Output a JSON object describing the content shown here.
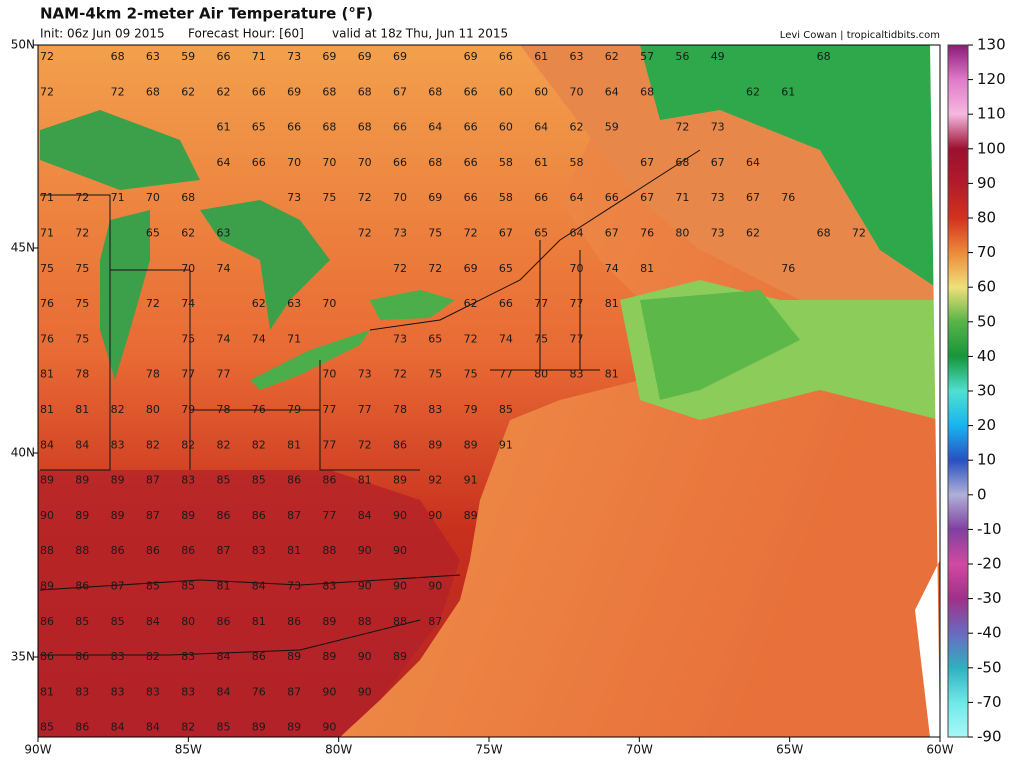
{
  "header": {
    "title": "NAM-4km 2-meter Air Temperature (°F)",
    "init": "Init: 06z Jun 09 2015",
    "forecast_hour": "Forecast Hour: [60]",
    "valid": "valid at 18z Thu, Jun 11 2015",
    "credit": "Levi Cowan | tropicaltidbits.com"
  },
  "map": {
    "lat_labels": [
      "50N",
      "45N",
      "40N",
      "35N"
    ],
    "lon_labels": [
      "90W",
      "85W",
      "80W",
      "75W",
      "70W",
      "65W",
      "60W"
    ],
    "temperature_rows": [
      [
        72,
        null,
        68,
        63,
        59,
        66,
        71,
        73,
        69,
        69,
        69,
        null,
        69,
        66,
        61,
        63,
        62,
        57,
        56,
        49,
        null,
        null,
        68
      ],
      [
        72,
        null,
        72,
        68,
        62,
        62,
        66,
        69,
        68,
        68,
        67,
        68,
        66,
        60,
        60,
        70,
        64,
        68,
        null,
        null,
        62,
        61
      ],
      [
        null,
        null,
        null,
        null,
        null,
        61,
        65,
        66,
        68,
        68,
        66,
        64,
        66,
        60,
        64,
        62,
        59,
        null,
        72,
        73
      ],
      [
        null,
        null,
        null,
        null,
        null,
        64,
        66,
        70,
        70,
        70,
        66,
        68,
        66,
        58,
        61,
        58,
        null,
        67,
        68,
        67,
        64
      ],
      [
        71,
        72,
        71,
        70,
        68,
        null,
        null,
        73,
        75,
        72,
        70,
        69,
        66,
        58,
        66,
        64,
        66,
        67,
        71,
        73,
        67,
        76
      ],
      [
        71,
        72,
        null,
        65,
        62,
        63,
        null,
        null,
        null,
        72,
        73,
        75,
        72,
        67,
        65,
        64,
        67,
        76,
        80,
        73,
        62,
        null,
        68,
        72
      ],
      [
        75,
        75,
        null,
        null,
        70,
        74,
        null,
        null,
        null,
        null,
        72,
        72,
        69,
        65,
        null,
        70,
        74,
        81,
        null,
        null,
        null,
        76
      ],
      [
        76,
        75,
        null,
        72,
        74,
        null,
        62,
        63,
        70,
        null,
        null,
        null,
        62,
        66,
        77,
        77,
        81
      ],
      [
        76,
        75,
        null,
        null,
        75,
        74,
        74,
        71,
        null,
        null,
        73,
        65,
        72,
        74,
        75,
        77
      ],
      [
        81,
        78,
        null,
        78,
        77,
        77,
        null,
        null,
        70,
        73,
        72,
        75,
        75,
        77,
        80,
        83,
        81
      ],
      [
        81,
        81,
        82,
        80,
        79,
        78,
        76,
        79,
        77,
        77,
        78,
        83,
        79,
        85
      ],
      [
        84,
        84,
        83,
        82,
        82,
        82,
        82,
        81,
        77,
        72,
        86,
        89,
        89,
        91
      ],
      [
        89,
        89,
        89,
        87,
        83,
        85,
        85,
        86,
        86,
        81,
        89,
        92,
        91
      ],
      [
        90,
        89,
        89,
        87,
        89,
        86,
        86,
        87,
        77,
        84,
        90,
        90,
        89
      ],
      [
        88,
        88,
        86,
        86,
        86,
        87,
        83,
        81,
        88,
        90,
        90
      ],
      [
        89,
        86,
        87,
        85,
        85,
        81,
        84,
        73,
        83,
        90,
        90,
        90
      ],
      [
        86,
        85,
        85,
        84,
        80,
        86,
        81,
        86,
        89,
        88,
        88,
        87
      ],
      [
        86,
        86,
        83,
        82,
        83,
        84,
        86,
        89,
        89,
        90,
        89
      ],
      [
        81,
        83,
        83,
        83,
        83,
        84,
        76,
        87,
        90,
        90
      ],
      [
        85,
        86,
        84,
        84,
        82,
        85,
        89,
        89,
        90
      ]
    ]
  },
  "colorbar": {
    "labels": [
      "130",
      "120",
      "110",
      "100",
      "90",
      "80",
      "70",
      "60",
      "50",
      "40",
      "30",
      "20",
      "10",
      "0",
      "-10",
      "-20",
      "-30",
      "-40",
      "-50",
      "-70",
      "-90"
    ],
    "colors": [
      "#8a1a78",
      "#e07ac8",
      "#f6b8e0",
      "#9a1030",
      "#b01c2a",
      "#d2321e",
      "#ec8a3a",
      "#f0e07a",
      "#58b448",
      "#16963a",
      "#50e0d0",
      "#18b4f0",
      "#2850c0",
      "#b0b0d8",
      "#8040a0",
      "#d04aa0",
      "#a03088",
      "#6a6ac0",
      "#30b0c0",
      "#70e8e8",
      "#a8f8f8"
    ]
  }
}
